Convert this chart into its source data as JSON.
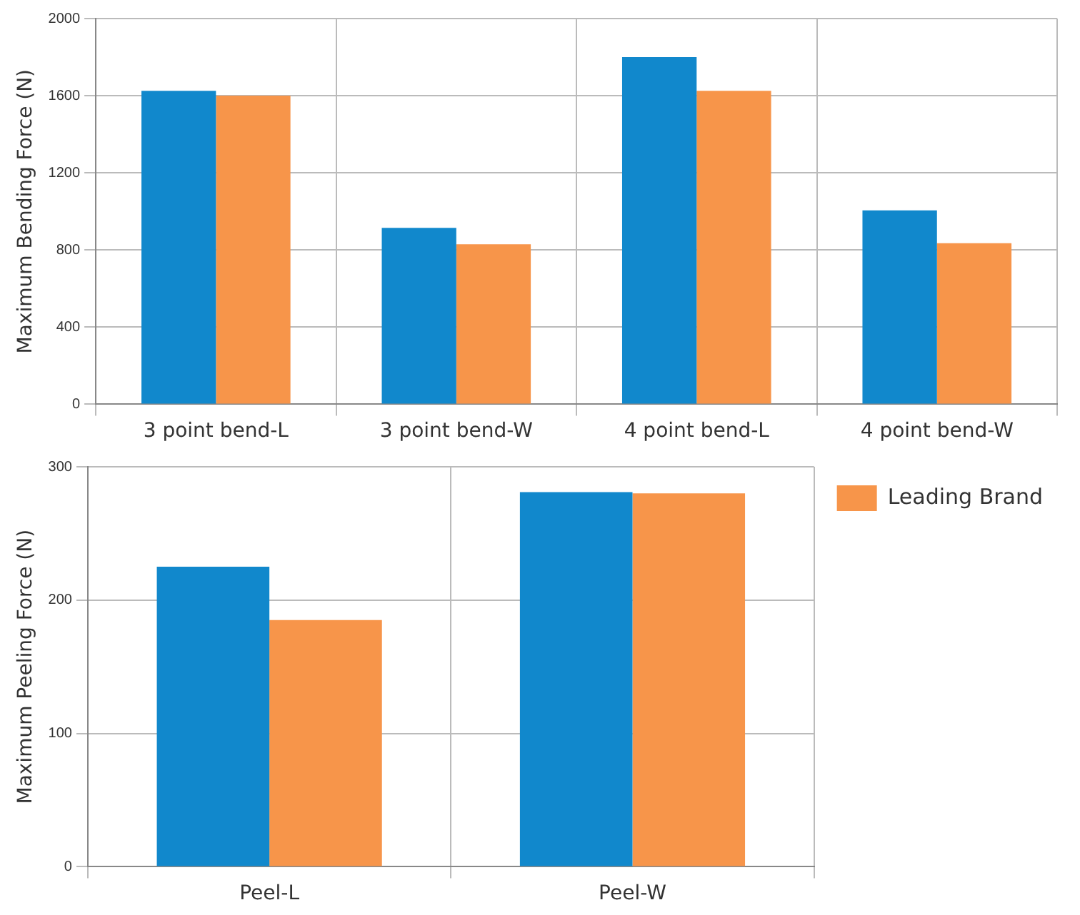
{
  "chart_data": [
    {
      "type": "bar",
      "ylabel": "Maximum Bending Force (N)",
      "categories": [
        "3 point bend-L",
        "3 point bend-W",
        "4 point bend-L",
        "4 point bend-W"
      ],
      "series": [
        {
          "color": "#1188cc",
          "values": [
            1625,
            915,
            1800,
            1005
          ]
        },
        {
          "color": "#f7954a",
          "values": [
            1600,
            830,
            1625,
            835
          ]
        }
      ],
      "ylim": [
        0,
        2000
      ],
      "yticks": [
        0,
        400,
        800,
        1200,
        1600,
        2000
      ],
      "grid": true,
      "legend": false
    },
    {
      "type": "bar",
      "ylabel": "Maximum Peeling Force (N)",
      "categories": [
        "Peel-L",
        "Peel-W"
      ],
      "series": [
        {
          "color": "#1188cc",
          "values": [
            225,
            281
          ]
        },
        {
          "name": "Leading Brand",
          "color": "#f7954a",
          "values": [
            185,
            280
          ]
        }
      ],
      "ylim": [
        0,
        300
      ],
      "yticks": [
        0,
        100,
        200,
        300
      ],
      "grid": true,
      "legend": "right"
    }
  ]
}
